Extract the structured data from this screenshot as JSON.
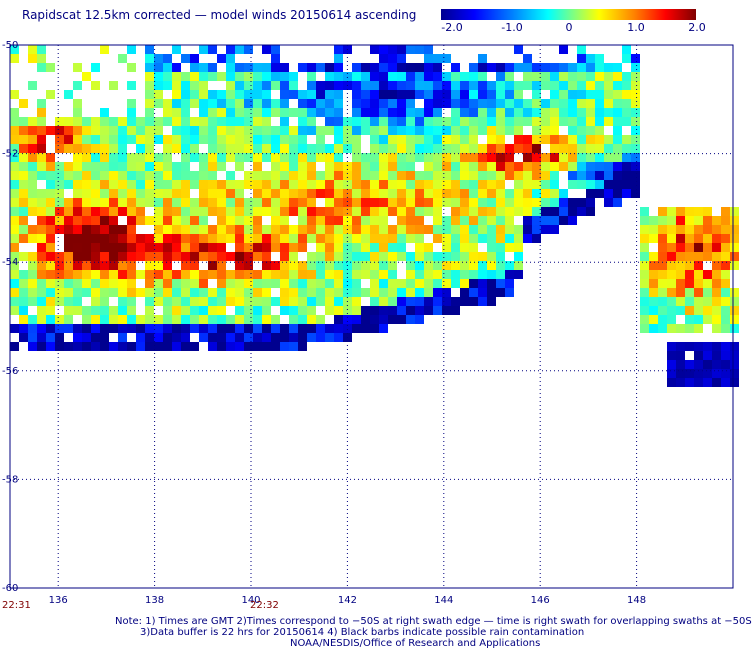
{
  "title": "Rapidscat 12.5km corrected — model winds 20150614 ascending",
  "colorbar": {
    "labels": [
      "-2.0",
      "-1.0",
      "0",
      "1.0",
      "2.0"
    ],
    "label_values": [
      -2.0,
      -1.0,
      0,
      1.0,
      2.0
    ],
    "range": [
      -2.0,
      2.0
    ]
  },
  "map": {
    "lon_range": [
      135.0,
      150.0
    ],
    "lat_range": [
      -60,
      -50
    ],
    "lon_ticks": [
      "136",
      "138",
      "140",
      "142",
      "144",
      "146",
      "148"
    ],
    "lon_tick_values": [
      136,
      138,
      140,
      142,
      144,
      146,
      148
    ],
    "lat_ticks": [
      "-50",
      "-52",
      "-54",
      "-56",
      "-58",
      "-60"
    ],
    "lat_tick_values": [
      -50,
      -52,
      -54,
      -56,
      -58,
      -60
    ],
    "grid": true
  },
  "times": [
    {
      "label": "22:31",
      "lon": 135.2
    },
    {
      "label": "22:32",
      "lon": 140.3
    }
  ],
  "notes": [
    "Note: 1) Times are GMT 2)Times correspond to −50S at right swath edge — time is right swath for overlapping swaths at −50S",
    "3)Data buffer is 22 hrs for 20150614 4) Black barbs indicate possible rain contamination",
    "NOAA/NESDIS/Office of Research and Applications"
  ]
}
